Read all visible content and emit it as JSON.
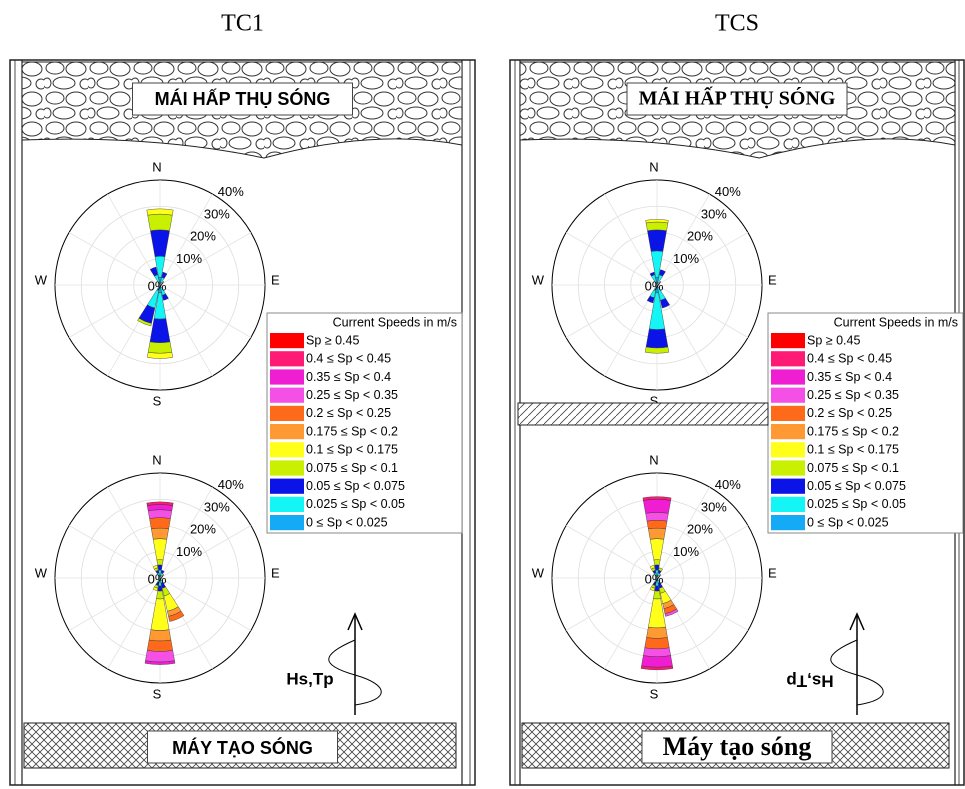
{
  "panels": [
    {
      "title": "TC1",
      "top_label": "MÁI HẤP THỤ SÓNG",
      "bottom_label": "MÁY TẠO SÓNG",
      "wave_label": "Hs,Tp",
      "wave_label_rotated": false,
      "roses": [
        {
          "petals": [
            {
              "direction": 0,
              "values": [
                0,
                0,
                0,
                0,
                0,
                0,
                2,
                6,
                10,
                8,
                3
              ]
            },
            {
              "direction": 22.5,
              "values": [
                0,
                0,
                0,
                0,
                0,
                0,
                0,
                0,
                2,
                2,
                1
              ]
            },
            {
              "direction": 337.5,
              "values": [
                0,
                0,
                0,
                0,
                0,
                0,
                0,
                0,
                3,
                3,
                1
              ]
            },
            {
              "direction": 180,
              "values": [
                0,
                0,
                0,
                0,
                0,
                0,
                2,
                4,
                9,
                10,
                3
              ]
            },
            {
              "direction": 202.5,
              "values": [
                0,
                0,
                0,
                0,
                0,
                0,
                0,
                1,
                6,
                7,
                2
              ]
            },
            {
              "direction": 157.5,
              "values": [
                0,
                0,
                0,
                0,
                0,
                0,
                0,
                0,
                2,
                3,
                1
              ]
            }
          ]
        },
        {
          "petals": [
            {
              "direction": 0,
              "values": [
                0,
                1,
                2,
                3,
                4,
                4,
                8,
                2,
                2,
                2,
                1
              ]
            },
            {
              "direction": 22.5,
              "values": [
                0,
                0,
                0,
                0,
                0,
                0,
                0,
                0,
                1,
                1,
                1
              ]
            },
            {
              "direction": 337.5,
              "values": [
                0,
                0,
                0,
                0,
                0,
                0,
                1,
                1,
                1,
                1,
                1
              ]
            },
            {
              "direction": 180,
              "values": [
                0,
                0,
                1,
                4,
                4,
                4,
                12,
                3,
                2,
                2,
                1
              ]
            },
            {
              "direction": 157.5,
              "values": [
                0,
                0,
                0,
                0,
                2,
                2,
                6,
                3,
                2,
                1,
                1
              ]
            },
            {
              "direction": 202.5,
              "values": [
                0,
                0,
                0,
                0,
                0,
                0,
                1,
                1,
                1,
                1,
                1
              ]
            }
          ]
        }
      ]
    },
    {
      "title": "TCS",
      "top_label": "MÁI HẤP THỤ SÓNG",
      "bottom_label": "Máy tạo sóng",
      "wave_label": "Hs,Tp",
      "wave_label_rotated": true,
      "roses": [
        {
          "petals": [
            {
              "direction": 0,
              "values": [
                0,
                0,
                0,
                0,
                0,
                0,
                1,
                3,
                8,
                10,
                3
              ]
            },
            {
              "direction": 22.5,
              "values": [
                0,
                0,
                0,
                0,
                0,
                0,
                0,
                0,
                2,
                3,
                1
              ]
            },
            {
              "direction": 337.5,
              "values": [
                0,
                0,
                0,
                0,
                0,
                0,
                0,
                0,
                1,
                3,
                1
              ]
            },
            {
              "direction": 180,
              "values": [
                0,
                0,
                0,
                0,
                0,
                0,
                0,
                2,
                7,
                14,
                3
              ]
            },
            {
              "direction": 157.5,
              "values": [
                0,
                0,
                0,
                0,
                0,
                0,
                0,
                0,
                3,
                5,
                1
              ]
            },
            {
              "direction": 202.5,
              "values": [
                0,
                0,
                0,
                0,
                0,
                0,
                0,
                0,
                2,
                4,
                1
              ]
            }
          ]
        },
        {
          "petals": [
            {
              "direction": 0,
              "values": [
                0,
                1,
                5,
                3,
                3,
                4,
                8,
                2,
                2,
                2,
                1
              ]
            },
            {
              "direction": 22.5,
              "values": [
                0,
                0,
                0,
                0,
                0,
                0,
                0,
                1,
                1,
                1,
                1
              ]
            },
            {
              "direction": 337.5,
              "values": [
                0,
                0,
                0,
                0,
                0,
                0,
                1,
                1,
                1,
                1,
                1
              ]
            },
            {
              "direction": 180,
              "values": [
                0,
                1,
                4,
                3,
                4,
                4,
                11,
                3,
                2,
                2,
                1
              ]
            },
            {
              "direction": 157.5,
              "values": [
                0,
                0,
                0,
                1,
                2,
                2,
                4,
                2,
                2,
                1,
                1
              ]
            },
            {
              "direction": 202.5,
              "values": [
                0,
                0,
                0,
                0,
                0,
                0,
                1,
                1,
                1,
                1,
                1
              ]
            }
          ]
        }
      ]
    }
  ],
  "rose_axes": {
    "directions": [
      "N",
      "E",
      "S",
      "W"
    ],
    "rmax": 40,
    "rings": [
      {
        "value": 10,
        "label": "10%"
      },
      {
        "value": 20,
        "label": "20%"
      },
      {
        "value": 30,
        "label": "30%"
      },
      {
        "value": 40,
        "label": "40%"
      }
    ],
    "center": {
      "value": 0,
      "label": "0%"
    }
  },
  "legend": {
    "title": "Current Speeds in m/s",
    "bins": [
      {
        "label": "Sp ≥ 0.45",
        "color": "#ff0000"
      },
      {
        "label": "0.4 ≤ Sp < 0.45",
        "color": "#ff1a75"
      },
      {
        "label": "0.35 ≤ Sp < 0.4",
        "color": "#f01ed2"
      },
      {
        "label": "0.25 ≤ Sp < 0.35",
        "color": "#f550e6"
      },
      {
        "label": "0.2 ≤ Sp < 0.25",
        "color": "#ff6a1a"
      },
      {
        "label": "0.175 ≤ Sp < 0.2",
        "color": "#ff9933"
      },
      {
        "label": "0.1 ≤ Sp < 0.175",
        "color": "#ffff1a"
      },
      {
        "label": "0.075 ≤ Sp < 0.1",
        "color": "#c8f000"
      },
      {
        "label": "0.05 ≤ Sp < 0.075",
        "color": "#0a14e6"
      },
      {
        "label": "0.025 ≤ Sp < 0.05",
        "color": "#14f5f5"
      },
      {
        "label": "0 ≤ Sp < 0.025",
        "color": "#14aaf5"
      }
    ]
  }
}
